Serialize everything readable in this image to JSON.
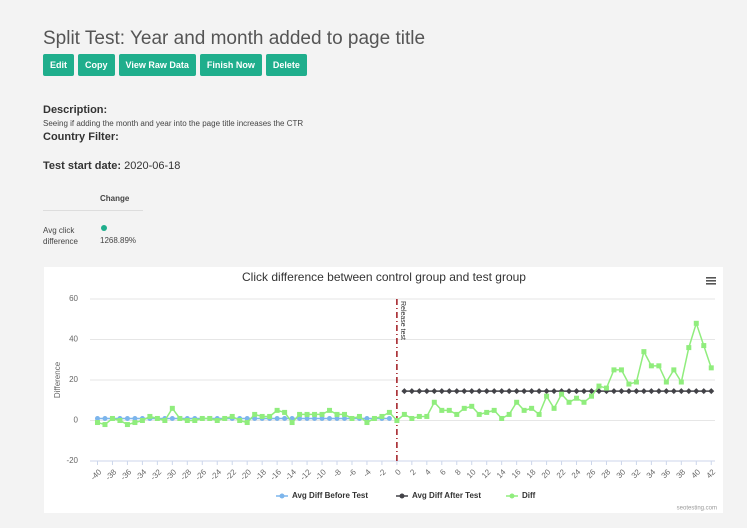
{
  "header": {
    "title": "Split Test: Year and month added to page title"
  },
  "buttons": [
    "Edit",
    "Copy",
    "View Raw Data",
    "Finish Now",
    "Delete"
  ],
  "description": {
    "label": "Description:",
    "text": "Seeing if adding the month and year into the page title increases the CTR"
  },
  "country_filter": {
    "label": "Country Filter:"
  },
  "start_date": {
    "label": "Test start date:",
    "value": "2020-06-18"
  },
  "table": {
    "header": "Change",
    "rows": [
      [
        "Avg click difference",
        "1268.89%"
      ]
    ]
  },
  "chart_data": {
    "type": "line",
    "title": "Click difference between control group and test group",
    "y_label": "Difference",
    "credit": "seotesting.com",
    "plotline": {
      "value": 0,
      "label": "Release test"
    },
    "x": [
      -40,
      -39,
      -38,
      -37,
      -36,
      -35,
      -34,
      -33,
      -32,
      -31,
      -30,
      -29,
      -28,
      -27,
      -26,
      -25,
      -24,
      -23,
      -22,
      -21,
      -20,
      -19,
      -18,
      -17,
      -16,
      -15,
      -14,
      -13,
      -12,
      -11,
      -10,
      -9,
      -8,
      -7,
      -6,
      -5,
      -4,
      -3,
      -2,
      -1,
      0,
      1,
      2,
      3,
      4,
      5,
      6,
      7,
      8,
      9,
      10,
      11,
      12,
      13,
      14,
      15,
      16,
      17,
      18,
      19,
      20,
      21,
      22,
      23,
      24,
      25,
      26,
      27,
      28,
      29,
      30,
      31,
      32,
      33,
      34,
      35,
      36,
      37,
      38,
      39,
      40,
      41,
      42
    ],
    "series": [
      {
        "name": "Avg Diff Before Test",
        "color": "#7cb5ec",
        "marker": "circle",
        "values": [
          1,
          1,
          1,
          1,
          1,
          1,
          1,
          1,
          1,
          1,
          1,
          1,
          1,
          1,
          1,
          1,
          1,
          1,
          1,
          1,
          1,
          1,
          1,
          1,
          1,
          1,
          1,
          1,
          1,
          1,
          1,
          1,
          1,
          1,
          1,
          1,
          1,
          1,
          1,
          1,
          null,
          null,
          null,
          null,
          null,
          null,
          null,
          null,
          null,
          null,
          null,
          null,
          null,
          null,
          null,
          null,
          null,
          null,
          null,
          null,
          null,
          null,
          null,
          null,
          null,
          null,
          null,
          null,
          null,
          null,
          null,
          null,
          null,
          null,
          null,
          null,
          null,
          null,
          null,
          null,
          null,
          null,
          null
        ]
      },
      {
        "name": "Avg Diff After Test",
        "color": "#434348",
        "marker": "diamond",
        "values": [
          null,
          null,
          null,
          null,
          null,
          null,
          null,
          null,
          null,
          null,
          null,
          null,
          null,
          null,
          null,
          null,
          null,
          null,
          null,
          null,
          null,
          null,
          null,
          null,
          null,
          null,
          null,
          null,
          null,
          null,
          null,
          null,
          null,
          null,
          null,
          null,
          null,
          null,
          null,
          null,
          null,
          14.5,
          14.5,
          14.5,
          14.5,
          14.5,
          14.5,
          14.5,
          14.5,
          14.5,
          14.5,
          14.5,
          14.5,
          14.5,
          14.5,
          14.5,
          14.5,
          14.5,
          14.5,
          14.5,
          14.5,
          14.5,
          14.5,
          14.5,
          14.5,
          14.5,
          14.5,
          14.5,
          14.5,
          14.5,
          14.5,
          14.5,
          14.5,
          14.5,
          14.5,
          14.5,
          14.5,
          14.5,
          14.5,
          14.5,
          14.5,
          14.5,
          14.5
        ]
      },
      {
        "name": "Diff",
        "color": "#90ed7d",
        "marker": "square",
        "values": [
          -1,
          -2,
          1,
          0,
          -2,
          -1,
          0,
          2,
          1,
          0,
          6,
          1,
          0,
          0,
          1,
          1,
          0,
          1,
          2,
          0,
          -1,
          3,
          2,
          2,
          5,
          4,
          -1,
          3,
          3,
          3,
          3,
          5,
          3,
          3,
          1,
          2,
          -1,
          1,
          2,
          4,
          0,
          3,
          1,
          2,
          2,
          9,
          5,
          5,
          3,
          6,
          7,
          3,
          4,
          5,
          1,
          3,
          9,
          5,
          6,
          3,
          12,
          6,
          13,
          9,
          11,
          9,
          12,
          17,
          16,
          25,
          25,
          18,
          19,
          34,
          27,
          27,
          19,
          25,
          19,
          36,
          48,
          37,
          26
        ]
      }
    ],
    "xlim": [
      -41,
      42.5
    ],
    "xticks": [
      -40,
      -38,
      -36,
      -34,
      -32,
      -30,
      -28,
      -26,
      -24,
      -22,
      -20,
      -18,
      -16,
      -14,
      -12,
      -10,
      -8,
      -6,
      -4,
      -2,
      0,
      2,
      4,
      6,
      8,
      10,
      12,
      14,
      16,
      18,
      20,
      22,
      24,
      26,
      28,
      30,
      32,
      34,
      36,
      38,
      40,
      42
    ],
    "ylim": [
      -20,
      60
    ],
    "yticks": [
      -20,
      0,
      20,
      40,
      60
    ],
    "grid": true
  }
}
